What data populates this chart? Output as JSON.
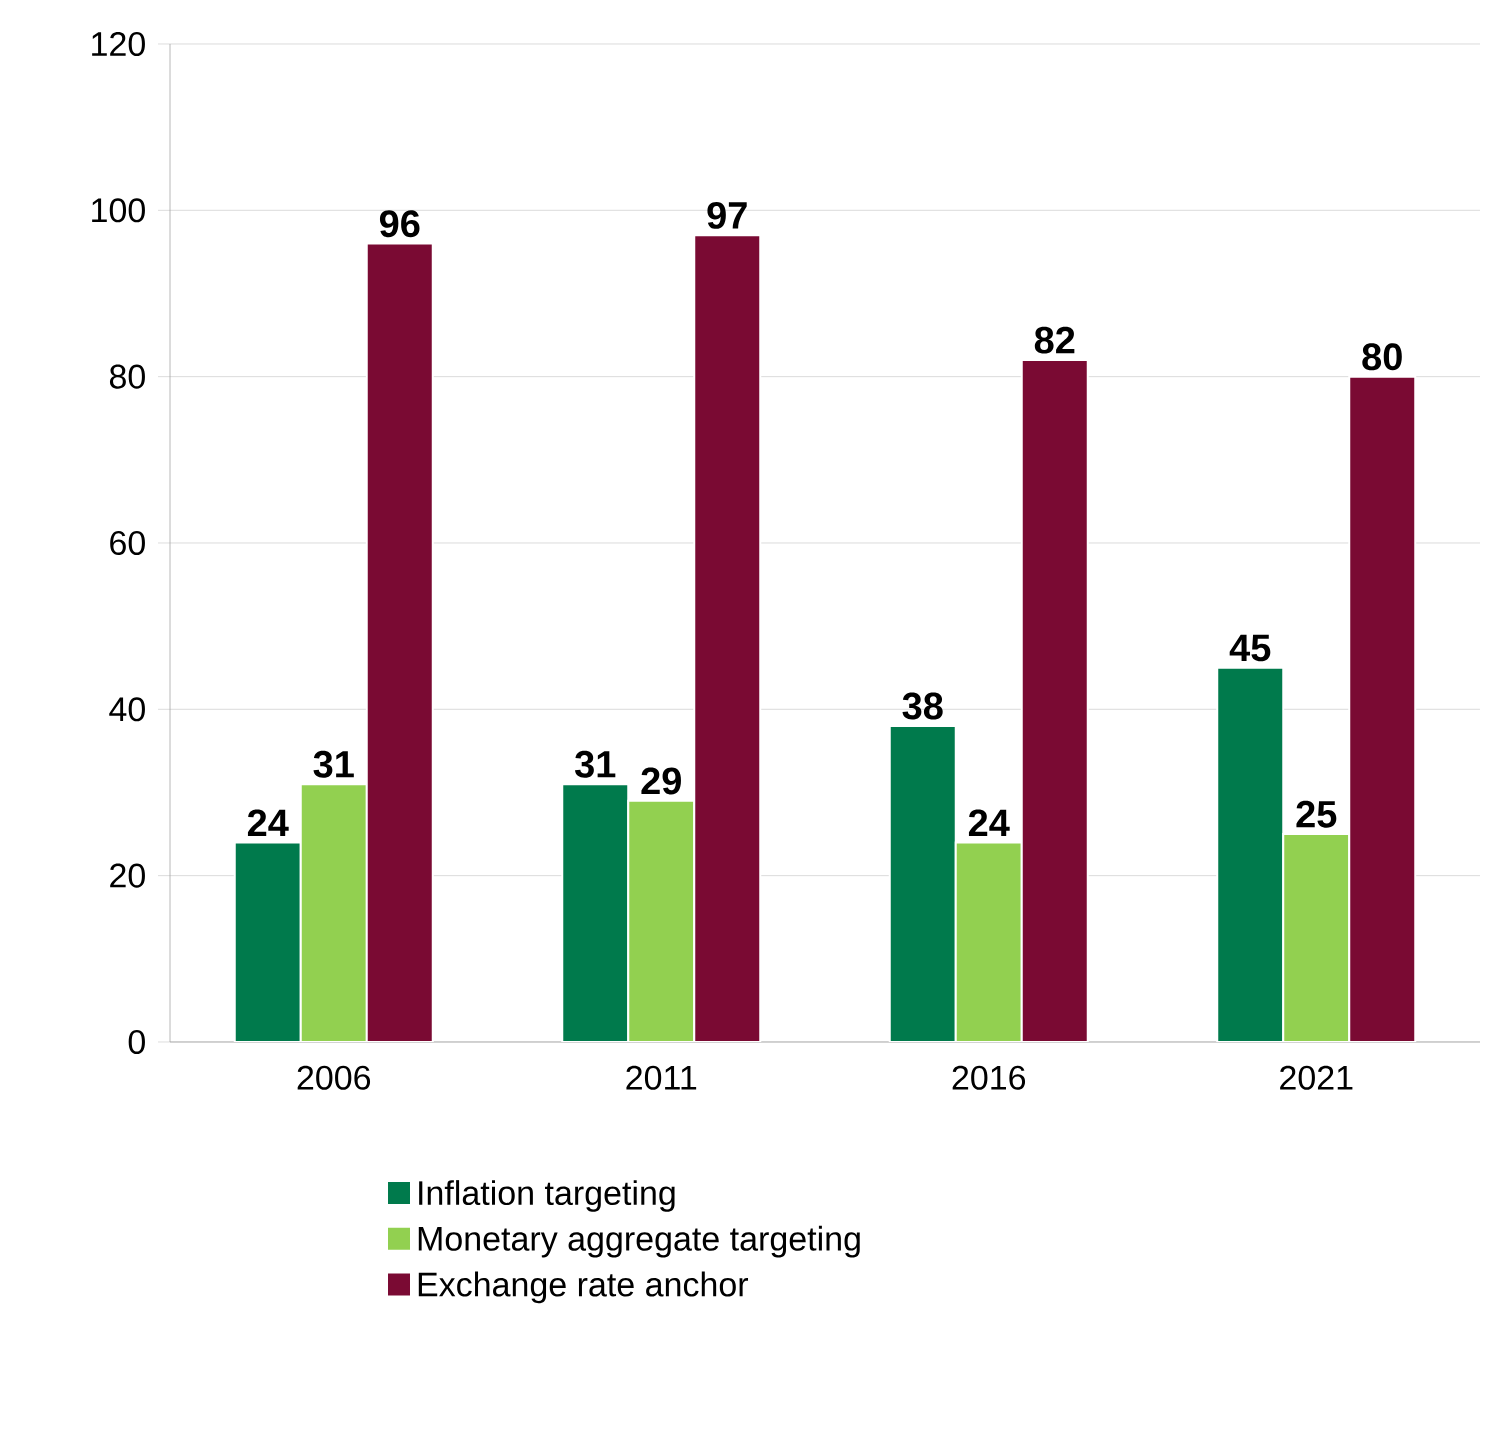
{
  "chart_data": {
    "type": "bar",
    "categories": [
      "2006",
      "2011",
      "2016",
      "2021"
    ],
    "series": [
      {
        "name": "Inflation targeting",
        "color": "#007a4c",
        "values": [
          24,
          31,
          38,
          45
        ]
      },
      {
        "name": "Monetary aggregate targeting",
        "color": "#92d050",
        "values": [
          31,
          29,
          24,
          25
        ]
      },
      {
        "name": "Exchange rate anchor",
        "color": "#7a0a33",
        "values": [
          96,
          97,
          82,
          80
        ]
      }
    ],
    "ylim": [
      0,
      120
    ],
    "yticks": [
      0,
      20,
      40,
      60,
      80,
      100,
      120
    ],
    "grid": "y",
    "legend": "bottom",
    "data_labels": true
  }
}
